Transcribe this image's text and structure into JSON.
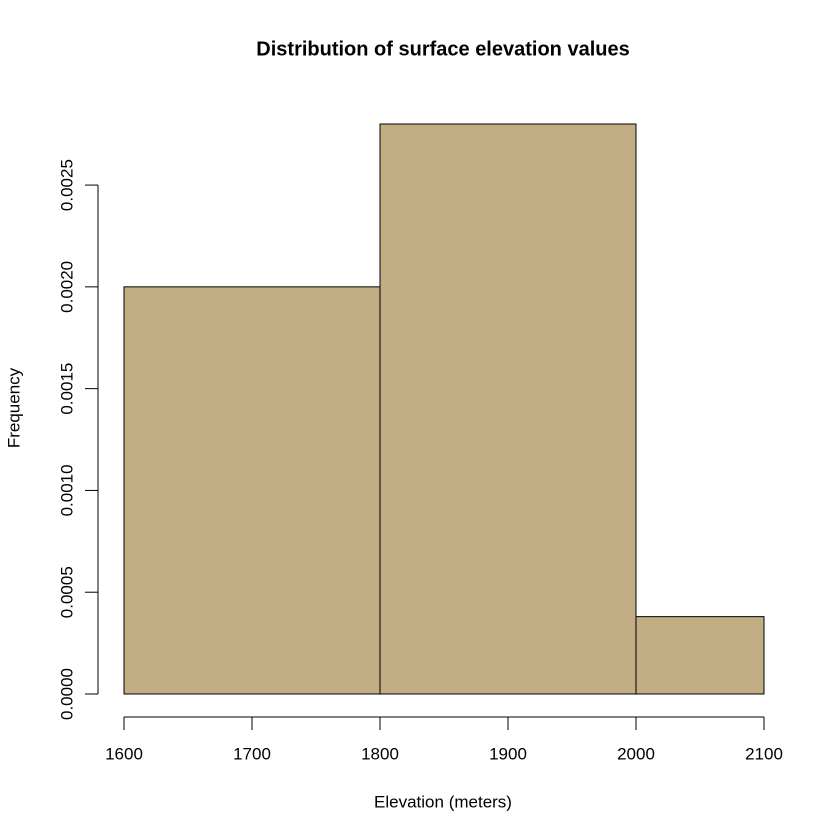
{
  "chart_data": {
    "type": "histogram",
    "title": "Distribution of surface elevation values",
    "x_label": "Elevation (meters)",
    "y_label": "Frequency",
    "bins": [
      1600,
      1800,
      2000,
      2100
    ],
    "values": [
      0.002,
      0.0028,
      0.00038
    ],
    "color": "#c2ad84",
    "xlim": [
      1600,
      2100
    ],
    "xticks": [
      1600,
      1700,
      1800,
      1900,
      2000,
      2100
    ],
    "ylim": [
      0,
      0.0028
    ],
    "yticks": [
      {
        "value": 0,
        "label": "0.0000"
      },
      {
        "value": 0.0005,
        "label": "0.0005"
      },
      {
        "value": 0.001,
        "label": "0.0010"
      },
      {
        "value": 0.0015,
        "label": "0.0015"
      },
      {
        "value": 0.002,
        "label": "0.0020"
      },
      {
        "value": 0.0025,
        "label": "0.0025"
      }
    ]
  }
}
